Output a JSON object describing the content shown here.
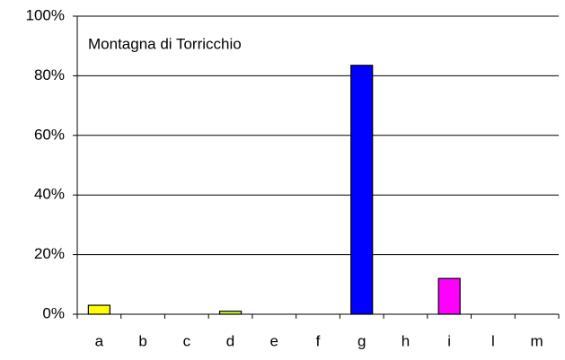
{
  "chart_data": {
    "type": "bar",
    "title": "Montagna di Torricchio",
    "categories": [
      "a",
      "b",
      "c",
      "d",
      "e",
      "f",
      "g",
      "h",
      "i",
      "l",
      "m"
    ],
    "values": [
      3,
      0,
      0,
      1,
      0,
      0,
      83.5,
      0,
      12,
      0,
      0
    ],
    "colors": [
      "#ffff00",
      "#ffff00",
      "#ffff00",
      "#ccff33",
      "#ffff00",
      "#ffff00",
      "#0000ff",
      "#ffff00",
      "#ff00ff",
      "#ffff00",
      "#ffff00"
    ],
    "ylim": [
      0,
      100
    ],
    "yticks": [
      {
        "value": 0,
        "label": "0%"
      },
      {
        "value": 20,
        "label": "20%"
      },
      {
        "value": 40,
        "label": "40%"
      },
      {
        "value": 60,
        "label": "60%"
      },
      {
        "value": 80,
        "label": "80%"
      },
      {
        "value": 100,
        "label": "100%"
      }
    ],
    "grid": true
  }
}
